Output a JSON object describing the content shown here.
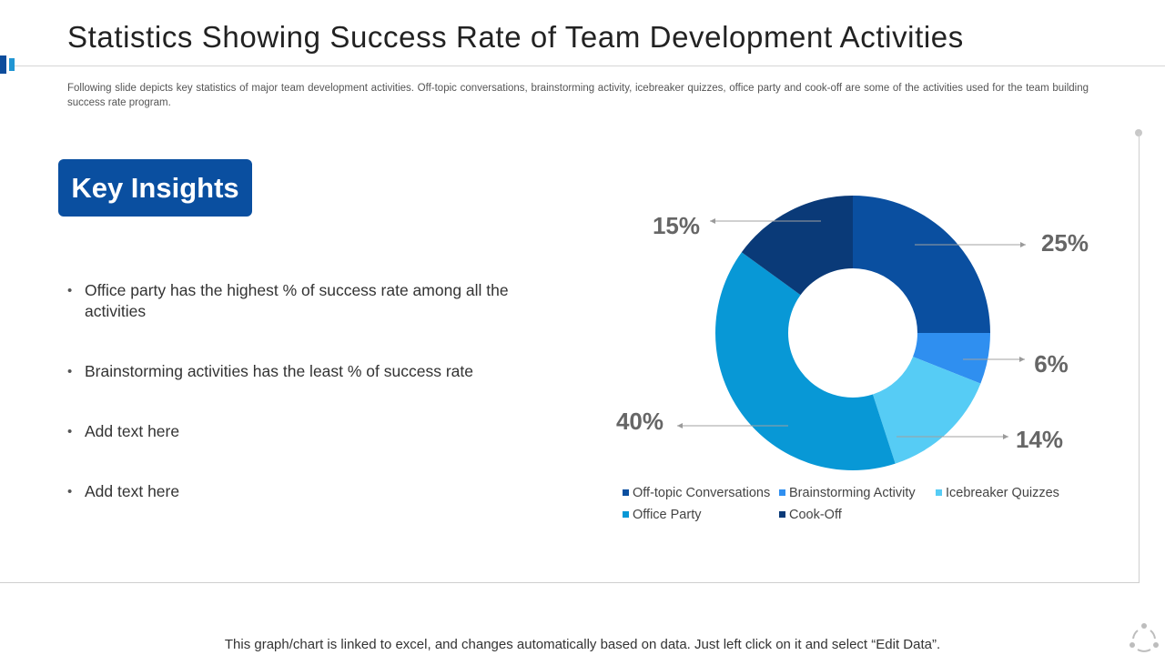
{
  "slide": {
    "title": "Statistics Showing Success Rate of Team Development Activities",
    "subtitle": "Following slide depicts key statistics of major team development  activities. Off-topic conversations, brainstorming activity, icebreaker quizzes, office party and cook-off are some of the activities used for the team building success rate program.",
    "insights_heading": "Key Insights",
    "bullets": [
      "Office party has the highest % of success rate among all the activities",
      "Brainstorming activities has the least % of success rate",
      "Add text here",
      "Add text here"
    ],
    "footer": "This graph/chart is linked to excel, and changes automatically  based on data. Just left click on it and select “Edit Data”.",
    "footer_icon": "people-cycle-icon"
  },
  "chart_data": {
    "type": "pie",
    "donut": true,
    "categories": [
      "Off-topic Conversations",
      "Brainstorming Activity",
      "Icebreaker Quizzes",
      "Office Party",
      "Cook-Off"
    ],
    "values": [
      25,
      6,
      14,
      40,
      15
    ],
    "labels": [
      "25%",
      "6%",
      "14%",
      "40%",
      "15%"
    ],
    "colors": [
      "#0a4fa0",
      "#2f8ff0",
      "#56ccf5",
      "#0898d6",
      "#0a3a78"
    ],
    "legend_position": "bottom"
  }
}
